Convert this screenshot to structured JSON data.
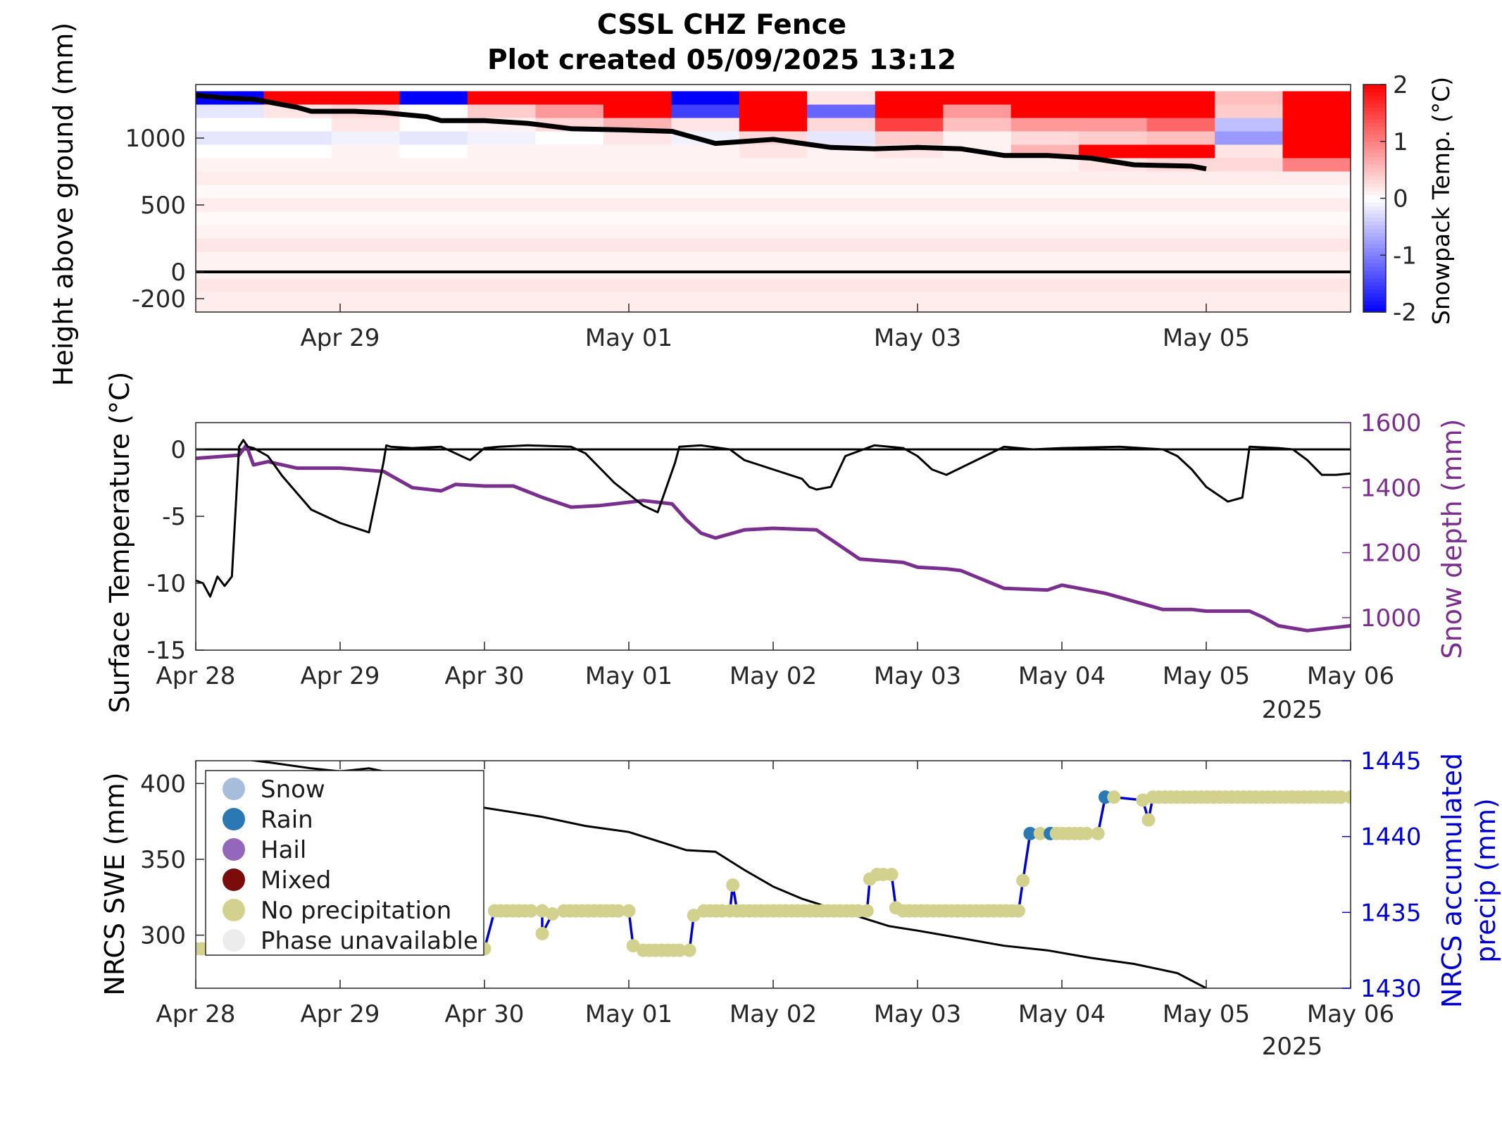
{
  "figure": {
    "title_line1": "CSSL CHZ Fence",
    "title_line2": "Plot created 05/09/2025 13:12",
    "year_label": "2025"
  },
  "colors": {
    "red": "#ff0000",
    "blue": "#0000ff",
    "depth_purple": "#7a2e8e",
    "precip_blue": "#0000cc",
    "no_precip": "#d2d28e",
    "rain": "#2a78b4",
    "snow": "#a6bddb",
    "hail": "#9467bd",
    "mixed": "#7b0c0c",
    "unavailable": "#ececec"
  },
  "chart_data": [
    {
      "id": "snowpack_temperature",
      "type": "heatmap",
      "ylabel": "Height above ground (mm)",
      "colorbar_label": "Snowpack Temp. (°C)",
      "x_ticks": [
        "Apr 29",
        "May 01",
        "May 03",
        "May 05"
      ],
      "xlim": [
        "2025-04-28",
        "2025-05-06"
      ],
      "y_ticks": [
        -200,
        0,
        500,
        1000
      ],
      "ylim": [
        -300,
        1400
      ],
      "colorbar_ticks": [
        -2,
        -1,
        0,
        1,
        2
      ],
      "clim": [
        -2,
        2
      ],
      "sensor_heights_mm": [
        -200,
        -100,
        0,
        100,
        200,
        300,
        400,
        500,
        600,
        700,
        800,
        900,
        1000,
        1100,
        1200,
        1300
      ],
      "column_dates": [
        "Apr 28 00h",
        "Apr 28 08h",
        "Apr 28 20h",
        "Apr 29 08h",
        "Apr 29 20h",
        "Apr 30 08h",
        "Apr 30 20h",
        "May 01 08h",
        "May 01 20h",
        "May 02 08h",
        "May 02 20h",
        "May 03 08h",
        "May 03 20h",
        "May 04 08h",
        "May 04 20h",
        "May 05 08h",
        "May 05 20h"
      ],
      "temperature_C_rows_top_to_bottom": [
        [
          -2,
          2,
          2,
          -2,
          2,
          2,
          2,
          -2,
          2,
          0.2,
          2,
          2,
          2,
          2,
          2,
          0.5,
          2
        ],
        [
          -0.2,
          0.2,
          0.3,
          0,
          0.4,
          0.8,
          2,
          -1.5,
          2,
          -1.2,
          2,
          0.8,
          2,
          2,
          2,
          0.4,
          2
        ],
        [
          0,
          0,
          0.2,
          0,
          0.1,
          0.3,
          0.6,
          0.2,
          2,
          0.3,
          1.5,
          0.5,
          0.8,
          0.8,
          1.2,
          -0.5,
          2
        ],
        [
          -0.2,
          -0.2,
          -0.1,
          -0.2,
          -0.1,
          0,
          0.2,
          -0.1,
          0.3,
          -0.2,
          0.4,
          0.1,
          0.3,
          0.4,
          0.5,
          -0.8,
          2
        ],
        [
          0,
          0,
          0.1,
          0,
          0.1,
          0.1,
          0.1,
          0.1,
          0.2,
          0.1,
          0.2,
          0.1,
          0.6,
          2,
          2,
          0.2,
          2
        ],
        [
          0.1,
          0.1,
          0.1,
          0.1,
          0.1,
          0.1,
          0.1,
          0.1,
          0.1,
          0.1,
          0.1,
          0.1,
          0.1,
          0.2,
          0.3,
          0.3,
          1
        ],
        [
          0.15,
          0.15,
          0.15,
          0.15,
          0.15,
          0.15,
          0.15,
          0.15,
          0.15,
          0.15,
          0.15,
          0.15,
          0.15,
          0.15,
          0.15,
          0.15,
          0.15
        ],
        [
          0.05,
          0.05,
          0.05,
          0.05,
          0.05,
          0.05,
          0.05,
          0.05,
          0.05,
          0.05,
          0.05,
          0.05,
          0.05,
          0.05,
          0.05,
          0.05,
          0.05
        ],
        [
          0.15,
          0.15,
          0.15,
          0.15,
          0.15,
          0.15,
          0.15,
          0.15,
          0.15,
          0.15,
          0.15,
          0.15,
          0.15,
          0.15,
          0.15,
          0.15,
          0.15
        ],
        [
          0.05,
          0.05,
          0.05,
          0.05,
          0.05,
          0.05,
          0.05,
          0.05,
          0.05,
          0.05,
          0.05,
          0.05,
          0.05,
          0.05,
          0.05,
          0.05,
          0.05
        ],
        [
          0.1,
          0.1,
          0.1,
          0.1,
          0.1,
          0.1,
          0.1,
          0.1,
          0.1,
          0.1,
          0.1,
          0.1,
          0.1,
          0.1,
          0.1,
          0.1,
          0.1
        ],
        [
          0.2,
          0.2,
          0.2,
          0.2,
          0.2,
          0.2,
          0.2,
          0.2,
          0.2,
          0.2,
          0.2,
          0.2,
          0.2,
          0.2,
          0.2,
          0.2,
          0.2
        ],
        [
          0.1,
          0.1,
          0.1,
          0.1,
          0.1,
          0.1,
          0.1,
          0.1,
          0.1,
          0.1,
          0.1,
          0.1,
          0.1,
          0.1,
          0.1,
          0.1,
          0.1
        ],
        [
          0.1,
          0.1,
          0.1,
          0.1,
          0.1,
          0.1,
          0.1,
          0.1,
          0.1,
          0.1,
          0.1,
          0.1,
          0.1,
          0.1,
          0.1,
          0.1,
          0.1
        ],
        [
          0.2,
          0.2,
          0.2,
          0.2,
          0.2,
          0.2,
          0.2,
          0.2,
          0.2,
          0.2,
          0.2,
          0.2,
          0.2,
          0.2,
          0.2,
          0.2,
          0.2
        ],
        [
          0.15,
          0.15,
          0.15,
          0.15,
          0.15,
          0.15,
          0.15,
          0.15,
          0.15,
          0.15,
          0.15,
          0.15,
          0.15,
          0.15,
          0.15,
          0.15,
          0.15
        ]
      ],
      "snow_depth_line": {
        "x_days": [
          0,
          0.2,
          0.4,
          0.7,
          0.8,
          1.1,
          1.3,
          1.6,
          1.7,
          2.0,
          2.3,
          2.6,
          3.0,
          3.3,
          3.6,
          4.0,
          4.4,
          4.7,
          5.0,
          5.3,
          5.6,
          5.9,
          6.2,
          6.5,
          6.9,
          7.0
        ],
        "height_mm": [
          1320,
          1300,
          1290,
          1230,
          1200,
          1200,
          1190,
          1160,
          1130,
          1130,
          1110,
          1070,
          1060,
          1050,
          960,
          990,
          930,
          920,
          930,
          920,
          870,
          870,
          850,
          800,
          790,
          770
        ]
      },
      "zero_line_mm": 0
    },
    {
      "id": "surface_temp_depth",
      "type": "line",
      "ylabel": "Surface Temperature (°C)",
      "y2label": "Snow depth (mm)",
      "x_ticks": [
        "Apr 28",
        "Apr 29",
        "Apr 30",
        "May 01",
        "May 02",
        "May 03",
        "May 04",
        "May 05",
        "May 06"
      ],
      "xlim": [
        "2025-04-28",
        "2025-05-06"
      ],
      "y_ticks": [
        0,
        -5,
        -10,
        -15
      ],
      "ylim": [
        -15,
        2
      ],
      "y2_ticks": [
        1000,
        1200,
        1400,
        1600
      ],
      "y2lim": [
        900,
        1600
      ],
      "series": [
        {
          "name": "Surface Temperature",
          "axis": "left",
          "x_days": [
            0,
            0.05,
            0.1,
            0.15,
            0.2,
            0.25,
            0.3,
            0.33,
            0.36,
            0.4,
            0.5,
            0.6,
            0.8,
            1.0,
            1.2,
            1.3,
            1.32,
            1.35,
            1.5,
            1.7,
            1.9,
            2.0,
            2.1,
            2.3,
            2.6,
            2.7,
            2.9,
            3.1,
            3.2,
            3.32,
            3.35,
            3.5,
            3.7,
            3.8,
            4.0,
            4.2,
            4.25,
            4.3,
            4.4,
            4.5,
            4.7,
            4.9,
            5.0,
            5.1,
            5.2,
            5.6,
            5.8,
            6.0,
            6.4,
            6.7,
            6.8,
            6.9,
            7.0,
            7.15,
            7.25,
            7.3,
            7.5,
            7.6,
            7.7,
            7.8,
            7.9,
            8.0
          ],
          "values": [
            -9.8,
            -10,
            -11,
            -9.5,
            -10.2,
            -9.5,
            0.2,
            0.7,
            0.2,
            0.1,
            -0.5,
            -2,
            -4.5,
            -5.5,
            -6.2,
            -1,
            0.3,
            0.2,
            0.1,
            0.2,
            -0.8,
            0.1,
            0.2,
            0.3,
            0.2,
            -0.3,
            -2.5,
            -4.2,
            -4.7,
            -1,
            0.2,
            0.3,
            0,
            -0.8,
            -1.5,
            -2.2,
            -2.8,
            -3.0,
            -2.8,
            -0.5,
            0.3,
            0.1,
            -0.5,
            -1.5,
            -1.9,
            0.2,
            0.0,
            0.1,
            0.2,
            0,
            -0.5,
            -1.5,
            -2.8,
            -3.9,
            -3.6,
            0.2,
            0.1,
            0,
            -0.8,
            -1.9,
            -1.9,
            -1.8
          ]
        },
        {
          "name": "Snow depth",
          "axis": "right",
          "x_days": [
            0,
            0.3,
            0.35,
            0.4,
            0.5,
            0.7,
            1.0,
            1.3,
            1.5,
            1.7,
            1.8,
            2.0,
            2.2,
            2.4,
            2.6,
            2.8,
            2.9,
            3.0,
            3.1,
            3.3,
            3.4,
            3.5,
            3.6,
            3.8,
            4.0,
            4.3,
            4.4,
            4.6,
            4.9,
            5.0,
            5.2,
            5.3,
            5.6,
            5.9,
            6.0,
            6.3,
            6.5,
            6.7,
            6.9,
            7.0,
            7.3,
            7.4,
            7.5,
            7.7,
            7.9,
            8.0
          ],
          "values": [
            1490,
            1500,
            1530,
            1470,
            1480,
            1460,
            1460,
            1450,
            1400,
            1390,
            1410,
            1405,
            1405,
            1370,
            1340,
            1345,
            1350,
            1355,
            1360,
            1350,
            1300,
            1260,
            1245,
            1270,
            1275,
            1270,
            1240,
            1180,
            1170,
            1155,
            1150,
            1145,
            1090,
            1085,
            1100,
            1075,
            1050,
            1025,
            1025,
            1020,
            1020,
            1000,
            975,
            960,
            970,
            975
          ]
        }
      ],
      "zero_line": 0
    },
    {
      "id": "swe_precip",
      "type": "line",
      "ylabel": "NRCS SWE (mm)",
      "y2label_line1": "NRCS accumulated",
      "y2label_line2": "precip (mm)",
      "x_ticks": [
        "Apr 28",
        "Apr 29",
        "Apr 30",
        "May 01",
        "May 02",
        "May 03",
        "May 04",
        "May 05",
        "May 06"
      ],
      "xlim": [
        "2025-04-28",
        "2025-05-06"
      ],
      "y_ticks": [
        300,
        350,
        400
      ],
      "ylim": [
        265,
        415
      ],
      "y2_ticks": [
        1430,
        1435,
        1440,
        1445
      ],
      "y2lim": [
        1430,
        1445
      ],
      "legend_position": "top-left",
      "legend": [
        {
          "label": "Snow",
          "color_key": "snow"
        },
        {
          "label": "Rain",
          "color_key": "rain"
        },
        {
          "label": "Hail",
          "color_key": "hail"
        },
        {
          "label": "Mixed",
          "color_key": "mixed"
        },
        {
          "label": "No precipitation",
          "color_key": "no_precip"
        },
        {
          "label": "Phase unavailable",
          "color_key": "unavailable"
        }
      ],
      "series": [
        {
          "name": "NRCS SWE",
          "axis": "left",
          "x_days": [
            0,
            0.5,
            0.8,
            1.0,
            1.2,
            1.3,
            2.0,
            2.2,
            2.4,
            2.7,
            3.0,
            3.2,
            3.4,
            3.6,
            3.8,
            4.0,
            4.2,
            4.4,
            4.6,
            4.8,
            5.0,
            5.3,
            5.6,
            5.9,
            6.2,
            6.5,
            6.8,
            7.0
          ],
          "values": [
            420,
            414,
            410,
            408,
            410,
            408,
            384,
            381,
            378,
            372,
            368,
            362,
            356,
            355,
            343,
            332,
            324,
            318,
            312,
            306,
            303,
            298,
            293,
            290,
            285,
            281,
            275,
            265
          ]
        },
        {
          "name": "NRCS accumulated precip",
          "axis": "right",
          "points": [
            [
              0.0,
              1432.6,
              "no_precip"
            ],
            [
              2.0,
              1432.6,
              "no_precip"
            ],
            [
              2.07,
              1435.1,
              "no_precip"
            ],
            [
              2.4,
              1435.1,
              "no_precip"
            ],
            [
              2.4,
              1433.6,
              "no_precip"
            ],
            [
              2.47,
              1434.9,
              "no_precip"
            ],
            [
              2.55,
              1435.1,
              "no_precip"
            ],
            [
              3.0,
              1435.1,
              "no_precip"
            ],
            [
              3.03,
              1432.8,
              "no_precip"
            ],
            [
              3.1,
              1432.5,
              "no_precip"
            ],
            [
              3.42,
              1432.5,
              "no_precip"
            ],
            [
              3.45,
              1434.8,
              "no_precip"
            ],
            [
              3.52,
              1435.1,
              "no_precip"
            ],
            [
              3.7,
              1435.1,
              "no_precip"
            ],
            [
              3.72,
              1436.8,
              "no_precip"
            ],
            [
              3.75,
              1435.1,
              "no_precip"
            ],
            [
              4.65,
              1435.1,
              "no_precip"
            ],
            [
              4.67,
              1437.2,
              "no_precip"
            ],
            [
              4.72,
              1437.5,
              "no_precip"
            ],
            [
              4.82,
              1437.5,
              "no_precip"
            ],
            [
              4.85,
              1435.3,
              "no_precip"
            ],
            [
              4.9,
              1435.1,
              "no_precip"
            ],
            [
              5.7,
              1435.1,
              "no_precip"
            ],
            [
              5.73,
              1437.1,
              "no_precip"
            ],
            [
              5.78,
              1440.2,
              "rain"
            ],
            [
              5.85,
              1440.2,
              "no_precip"
            ],
            [
              5.92,
              1440.2,
              "rain"
            ],
            [
              6.25,
              1440.2,
              "no_precip"
            ],
            [
              6.3,
              1442.6,
              "rain"
            ],
            [
              6.36,
              1442.6,
              "no_precip"
            ],
            [
              6.56,
              1442.4,
              "no_precip"
            ],
            [
              6.6,
              1441.1,
              "no_precip"
            ],
            [
              6.63,
              1442.6,
              "no_precip"
            ],
            [
              8.0,
              1442.6,
              "no_precip"
            ]
          ]
        }
      ]
    }
  ]
}
